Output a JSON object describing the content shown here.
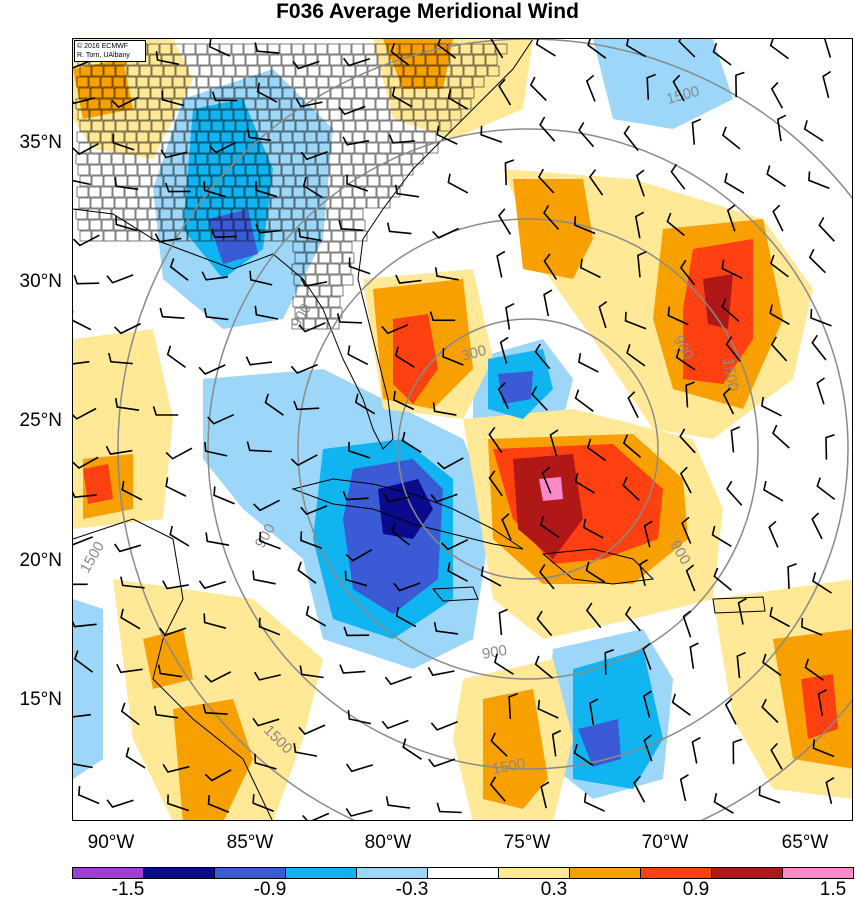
{
  "title": "F036 Average Meridional Wind",
  "credit": {
    "line1": "© 2016 ECMWF",
    "line2": "R. Torn, UAlbany"
  },
  "lat_labels": [
    "35°N",
    "30°N",
    "25°N",
    "20°N",
    "15°N"
  ],
  "lon_labels": [
    "90°W",
    "85°W",
    "80°W",
    "75°W",
    "70°W",
    "65°W"
  ],
  "range_ring_labels": [
    "300",
    "900",
    "900",
    "900",
    "900",
    "900",
    "1500",
    "1500",
    "1500",
    "1500",
    "1500"
  ],
  "colorbar": {
    "colors": [
      "#9b3fd6",
      "#0a0a8c",
      "#3a5ad6",
      "#10b4f0",
      "#9cd6f8",
      "#ffffff",
      "#ffe896",
      "#f8a000",
      "#ff4010",
      "#b01818",
      "#ff88c8"
    ],
    "labels": [
      "-1.5",
      "-0.9",
      "-0.3",
      "0.3",
      "0.9",
      "1.5"
    ]
  }
}
